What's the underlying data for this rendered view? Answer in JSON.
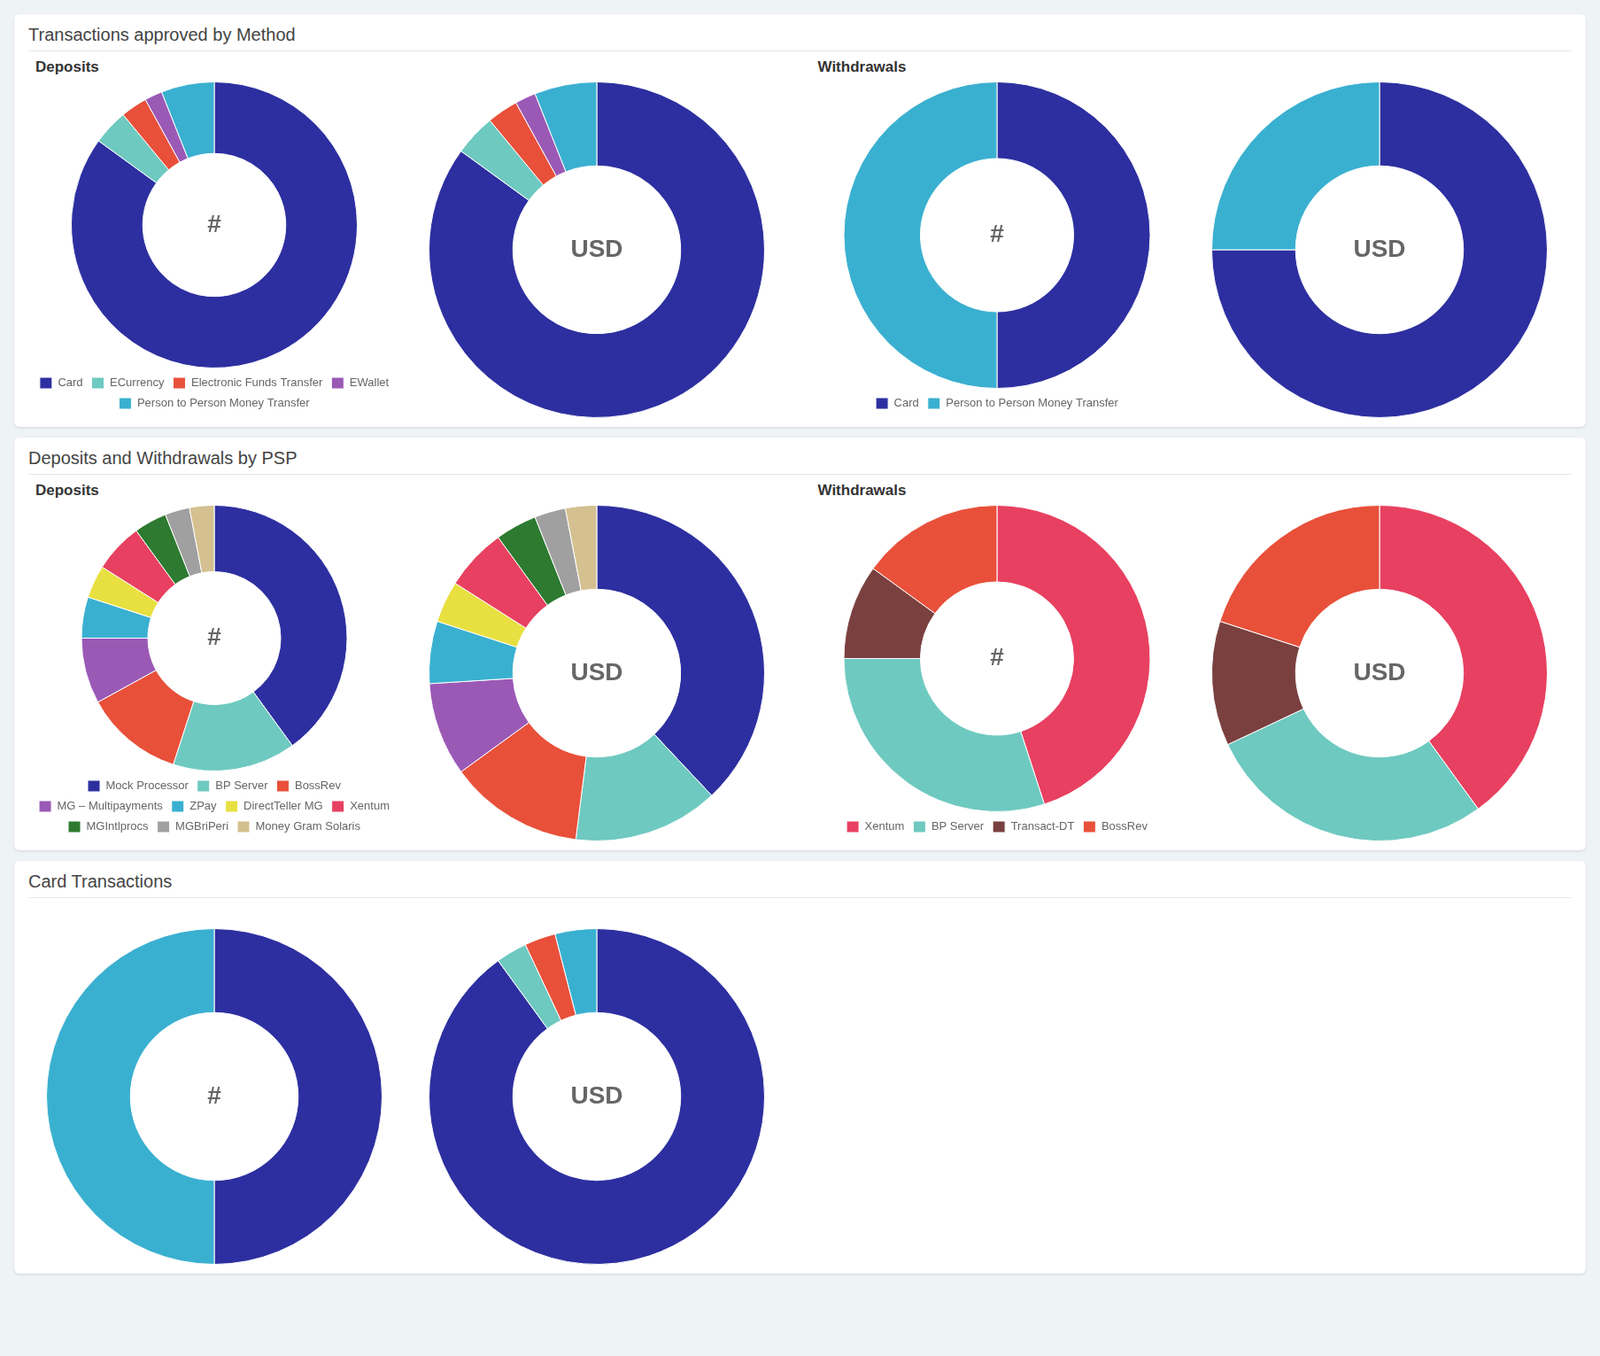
{
  "chart_data": [
    {
      "type": "doughnut",
      "title": "Transactions approved by Method",
      "subtitle": "Deposits",
      "annotations": [
        "#"
      ],
      "categories": [
        "Card",
        "ECurrency",
        "Electronic Funds Transfer",
        "EWallet",
        "Person to Person Money Transfer"
      ],
      "values": [
        85,
        4,
        3,
        2,
        6
      ],
      "colors": [
        "#2d2fa0",
        "#6ec9c0",
        "#e8503a",
        "#9b59b6",
        "#3ab0d0"
      ],
      "legend": "bottom"
    },
    {
      "type": "doughnut",
      "annotations": [
        "USD"
      ],
      "values": [
        85,
        4,
        3,
        2,
        6
      ],
      "colors": [
        "#2d2fa0",
        "#6ec9c0",
        "#e8503a",
        "#9b59b6",
        "#3ab0d0"
      ]
    },
    {
      "type": "doughnut",
      "subtitle": "Withdrawals",
      "annotations": [
        "#"
      ],
      "categories": [
        "Card",
        "Person to Person Money Transfer"
      ],
      "values": [
        50,
        50
      ],
      "colors": [
        "#2d2fa0",
        "#3ab0d0"
      ],
      "legend": "bottom"
    },
    {
      "type": "doughnut",
      "annotations": [
        "USD"
      ],
      "values": [
        75,
        25
      ],
      "colors": [
        "#2d2fa0",
        "#3ab0d0"
      ]
    },
    {
      "type": "doughnut",
      "title": "Deposits and Withdrawals by PSP",
      "subtitle": "Deposits",
      "annotations": [
        "#"
      ],
      "categories": [
        "Mock Processor",
        "BP Server",
        "BossRev",
        "MG – Multipayments",
        "ZPay",
        "DirectTeller MG",
        "Xentum",
        "MGIntlprocs",
        "MGBriPeri",
        "Money Gram Solaris"
      ],
      "values": [
        40,
        15,
        12,
        8,
        5,
        4,
        6,
        4,
        3,
        3
      ],
      "colors": [
        "#2d2fa0",
        "#6ec9c0",
        "#e8503a",
        "#9b59b6",
        "#3ab0d0",
        "#e8e040",
        "#e84060",
        "#2d7a30",
        "#a0a0a0",
        "#d4c090"
      ],
      "legend": "bottom"
    },
    {
      "type": "doughnut",
      "annotations": [
        "USD"
      ],
      "values": [
        38,
        14,
        13,
        9,
        6,
        4,
        6,
        4,
        3,
        3
      ],
      "colors": [
        "#2d2fa0",
        "#6ec9c0",
        "#e8503a",
        "#9b59b6",
        "#3ab0d0",
        "#e8e040",
        "#e84060",
        "#2d7a30",
        "#a0a0a0",
        "#d4c090"
      ]
    },
    {
      "type": "doughnut",
      "subtitle": "Withdrawals",
      "annotations": [
        "#"
      ],
      "categories": [
        "Xentum",
        "BP Server",
        "Transact-DT",
        "BossRev"
      ],
      "values": [
        45,
        30,
        10,
        15
      ],
      "colors": [
        "#e84060",
        "#6ec9c0",
        "#7a4040",
        "#e8503a"
      ],
      "legend": "bottom"
    },
    {
      "type": "doughnut",
      "annotations": [
        "USD"
      ],
      "values": [
        40,
        28,
        12,
        20
      ],
      "colors": [
        "#e84060",
        "#6ec9c0",
        "#7a4040",
        "#e8503a"
      ]
    },
    {
      "type": "doughnut",
      "title": "Card Transactions",
      "annotations": [
        "#"
      ],
      "values": [
        50,
        50
      ],
      "colors": [
        "#2d2fa0",
        "#3ab0d0"
      ]
    },
    {
      "type": "doughnut",
      "annotations": [
        "USD"
      ],
      "values": [
        90,
        3,
        3,
        4
      ],
      "colors": [
        "#2d2fa0",
        "#6ec9c0",
        "#e8503a",
        "#3ab0d0"
      ]
    }
  ]
}
